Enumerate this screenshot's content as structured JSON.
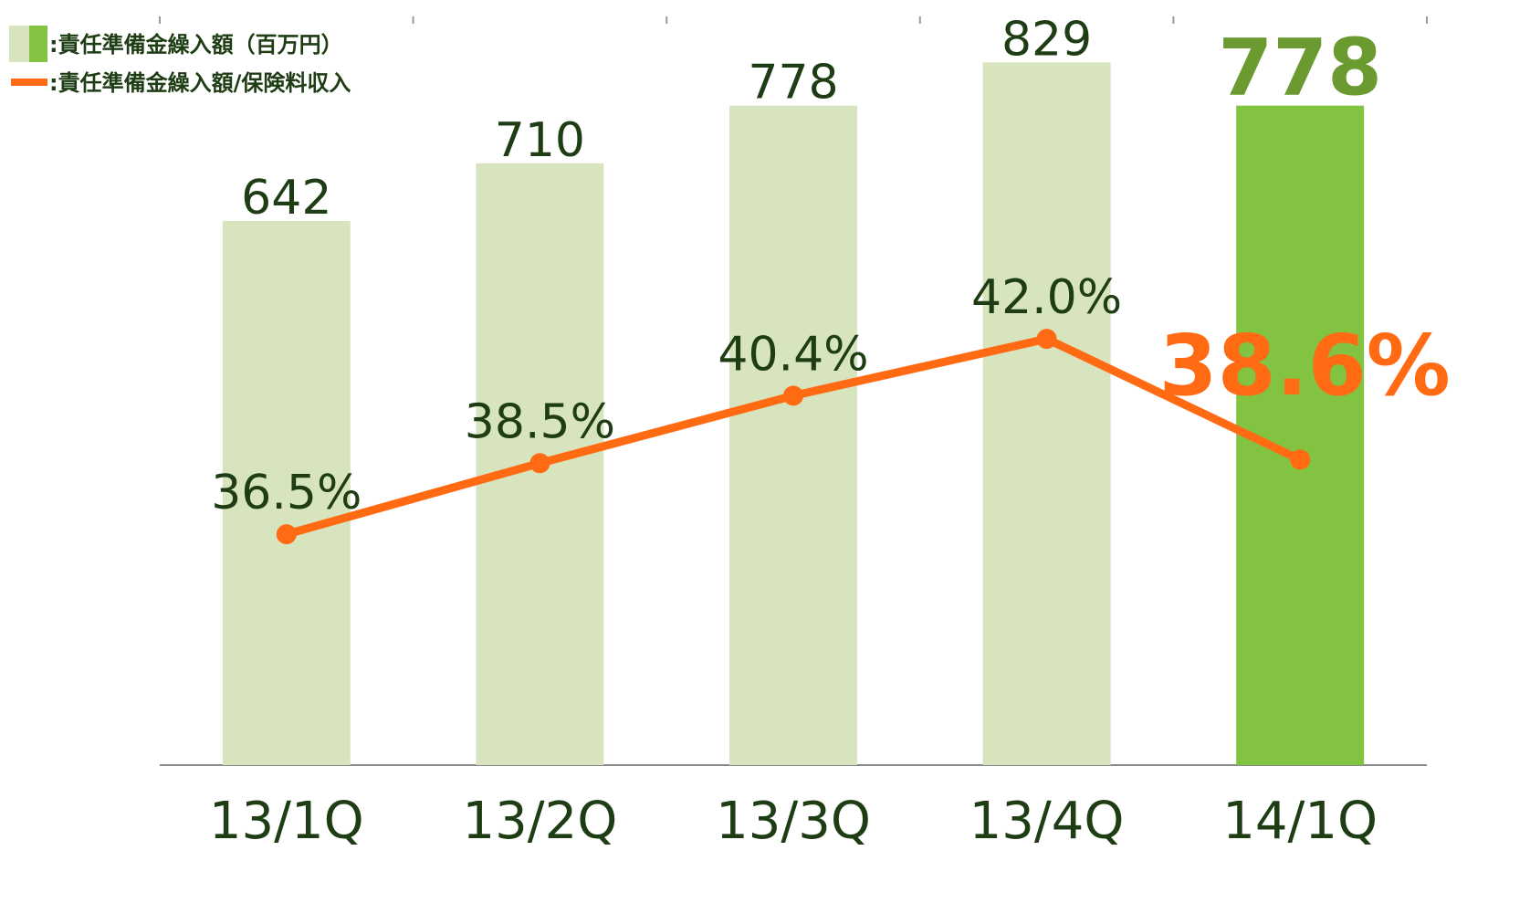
{
  "chart_data": {
    "type": "combo",
    "categories": [
      "13/1Q",
      "13/2Q",
      "13/3Q",
      "13/4Q",
      "14/1Q"
    ],
    "series": [
      {
        "name": ":責任準備金繰入額（百万円）",
        "type": "bar",
        "color": "#d7e4bd",
        "colors": [
          "#d7e4bd",
          "#d7e4bd",
          "#d7e4bd",
          "#d7e4bd",
          "#82c341"
        ],
        "values": [
          642,
          710,
          778,
          829,
          778
        ]
      },
      {
        "name": ":責任準備金繰入額/保険料収入",
        "type": "line",
        "axis": "y2",
        "color": "#ff6a13",
        "values": [
          36.5,
          38.5,
          40.4,
          42.0,
          38.6
        ],
        "value_labels": [
          "36.5%",
          "38.5%",
          "40.4%",
          "42.0%",
          "38.6%"
        ]
      }
    ],
    "ylim": [
      0,
      880
    ],
    "y2lim": [
      30,
      51
    ],
    "legend": "top-left"
  }
}
